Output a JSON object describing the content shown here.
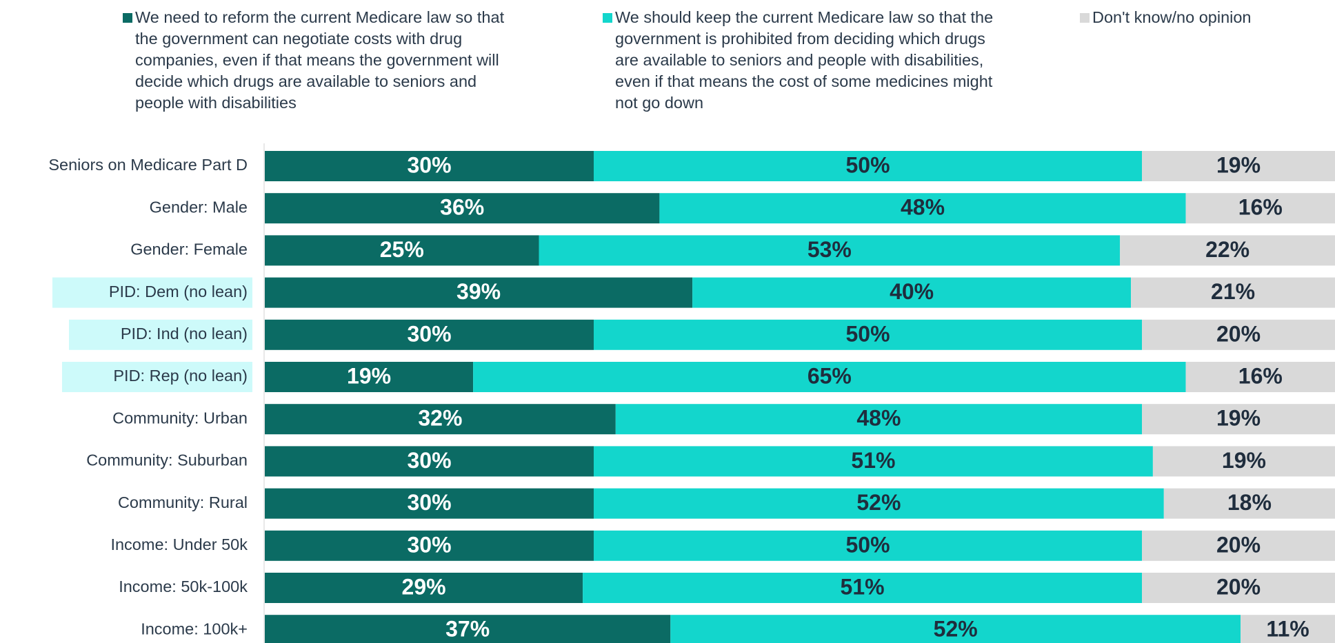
{
  "chart_data": {
    "type": "stacked-bar-horizontal",
    "categories": [
      "Seniors on Medicare Part D",
      "Gender: Male",
      "Gender: Female",
      "PID: Dem (no lean)",
      "PID: Ind (no lean)",
      "PID: Rep (no lean)",
      "Community: Urban",
      "Community: Suburban",
      "Community: Rural",
      "Income: Under 50k",
      "Income: 50k-100k",
      "Income: 100k+"
    ],
    "series": [
      {
        "name": "We need to reform the current Medicare law so that the government can negotiate costs with drug companies, even if that means the government will decide which drugs are available to seniors and people with disabilities",
        "color": "#0b6b64",
        "values": [
          30,
          36,
          25,
          39,
          30,
          19,
          32,
          30,
          30,
          30,
          29,
          37
        ],
        "value_labels": [
          "30%",
          "36%",
          "25%",
          "39%",
          "30%",
          "19%",
          "32%",
          "30%",
          "30%",
          "30%",
          "29%",
          "37%"
        ]
      },
      {
        "name": "We should keep the current Medicare law so that the government is prohibited from deciding which drugs are available to seniors and people with disabilities, even if that means the cost of some medicines might not go down",
        "color": "#13d6cc",
        "values": [
          50,
          48,
          53,
          40,
          50,
          65,
          48,
          51,
          52,
          50,
          51,
          52
        ],
        "value_labels": [
          "50%",
          "48%",
          "53%",
          "40%",
          "50%",
          "65%",
          "48%",
          "51%",
          "52%",
          "50%",
          "51%",
          "52%"
        ]
      },
      {
        "name": "Don't know/no opinion",
        "color": "#d9d9d9",
        "values": [
          19,
          16,
          22,
          21,
          20,
          16,
          19,
          19,
          18,
          20,
          20,
          11
        ],
        "value_labels": [
          "19%",
          "16%",
          "22%",
          "21%",
          "20%",
          "16%",
          "19%",
          "19%",
          "18%",
          "20%",
          "20%",
          "11%"
        ]
      }
    ],
    "xlim": [
      0,
      100
    ]
  }
}
